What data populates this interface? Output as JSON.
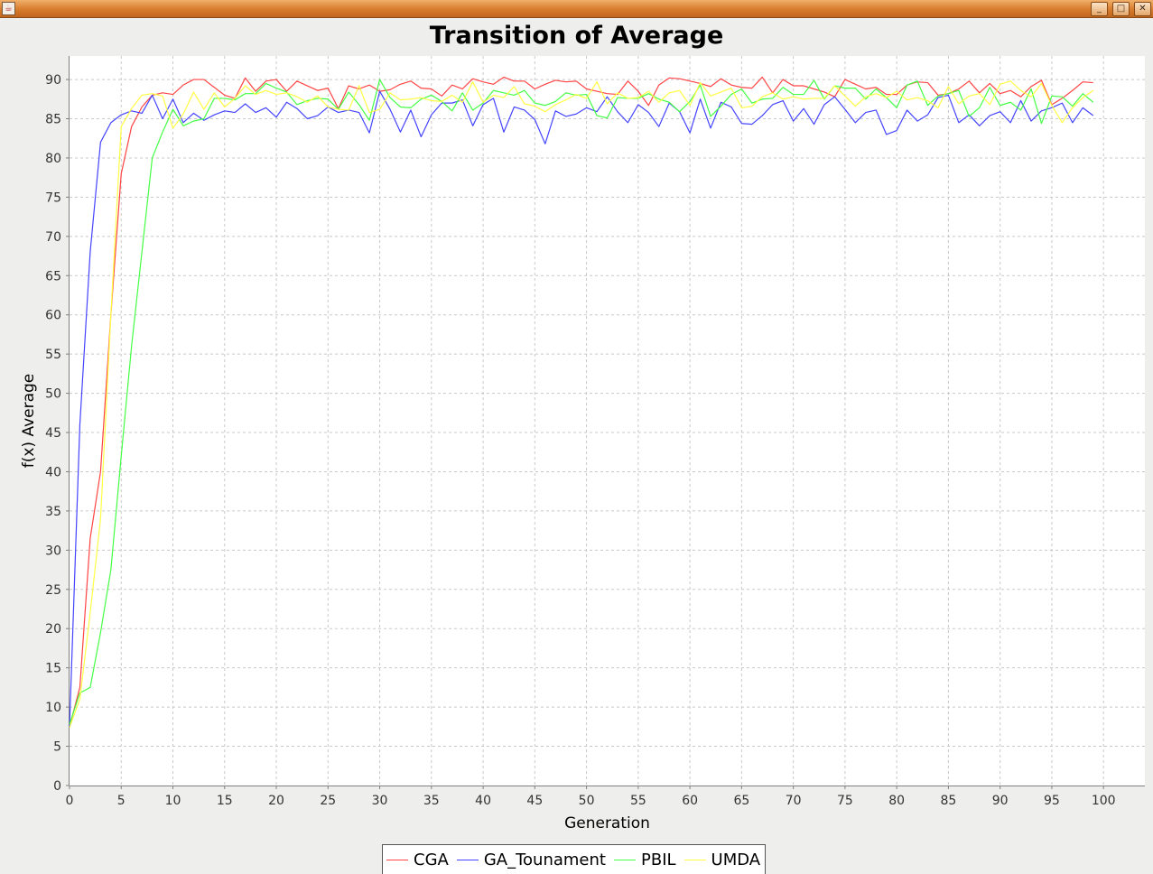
{
  "window": {
    "title": ""
  },
  "colors": {
    "plot_background": "#ffffff",
    "grid": "#c8c8c8",
    "axis": "#808080"
  },
  "legend_items": [
    {
      "label": "CGA",
      "color": "#ff4444"
    },
    {
      "label": "GA_Tounament",
      "color": "#4444ff"
    },
    {
      "label": "PBIL",
      "color": "#44ff44"
    },
    {
      "label": "UMDA",
      "color": "#ffff44"
    }
  ],
  "chart_data": {
    "type": "line",
    "title": "Transition of Average",
    "xlabel": "Generation",
    "ylabel": "f(x) Average",
    "xlim": [
      0,
      104
    ],
    "ylim": [
      0,
      93
    ],
    "x_ticks": [
      0,
      5,
      10,
      15,
      20,
      25,
      30,
      35,
      40,
      45,
      50,
      55,
      60,
      65,
      70,
      75,
      80,
      85,
      90,
      95,
      100
    ],
    "y_ticks": [
      0,
      5,
      10,
      15,
      20,
      25,
      30,
      35,
      40,
      45,
      50,
      55,
      60,
      65,
      70,
      75,
      80,
      85,
      90
    ],
    "grid": true,
    "legend_position": "bottom",
    "series": [
      {
        "name": "CGA",
        "color": "#ff4444",
        "values": [
          7.5,
          12.5,
          31.5,
          40,
          60,
          78,
          84,
          86.5,
          88,
          88.3,
          88.1,
          89.3,
          90,
          90,
          89,
          88,
          87.6,
          90.2,
          88.5,
          89.8,
          90,
          88.5,
          89.8,
          89.2,
          88.6,
          88.9,
          86.3,
          89.2,
          88.8,
          89.3,
          88.5,
          88.7,
          89.4,
          89.8,
          88.9,
          88.8,
          87.9,
          89.3,
          88.8,
          90.1,
          89.7,
          89.4,
          90.3,
          89.8,
          89.8,
          88.8,
          89.4,
          89.9,
          89.7,
          89.8,
          88.8,
          88.5,
          88.2,
          88.1,
          89.8,
          88.5,
          86.7,
          89.3,
          90.2,
          90.1,
          89.8,
          89.5,
          89.1,
          90.1,
          89.3,
          89,
          88.9,
          90.3,
          88.3,
          90,
          89.2,
          89.2,
          88.8,
          88.4,
          87.8,
          90,
          89.4,
          88.8,
          89,
          88.1,
          88.1,
          89.3,
          89.7,
          89.6,
          88,
          88.2,
          88.8,
          89.8,
          88.3,
          89.5,
          88.2,
          88.6,
          87.8,
          89.1,
          89.9,
          86.8,
          87.6,
          88.6,
          89.7,
          89.6
        ]
      },
      {
        "name": "GA_Tounament",
        "color": "#4444ff",
        "values": [
          7.5,
          46,
          68,
          82,
          84.5,
          85.5,
          86,
          85.7,
          88,
          85,
          87.5,
          84.5,
          85.7,
          84.8,
          85.5,
          86,
          85.8,
          86.9,
          85.8,
          86.4,
          85.2,
          87.1,
          86.3,
          85,
          85.4,
          86.5,
          85.8,
          86.1,
          85.8,
          83.2,
          88.5,
          86.2,
          83.3,
          86.1,
          82.7,
          85.5,
          87,
          87,
          87.4,
          84.1,
          86.8,
          87.6,
          83.3,
          86.5,
          86.1,
          84.9,
          81.8,
          86,
          85.3,
          85.6,
          86.4,
          85.9,
          87.8,
          85.9,
          84.5,
          86.8,
          85.8,
          84,
          87,
          85.9,
          83.2,
          87.5,
          83.8,
          87.1,
          86.5,
          84.4,
          84.3,
          85.4,
          86.8,
          87.3,
          84.7,
          86.3,
          84.3,
          86.8,
          87.8,
          86.2,
          84.5,
          85.8,
          86.1,
          83,
          83.5,
          86.1,
          84.7,
          85.5,
          87.7,
          88,
          84.5,
          85.5,
          84.1,
          85.4,
          85.9,
          84.5,
          87.3,
          84.7,
          86,
          86.4,
          87,
          84.5,
          86.4,
          85.4
        ]
      },
      {
        "name": "PBIL",
        "color": "#44ff44",
        "values": [
          7.8,
          11.8,
          12.5,
          19.5,
          27.5,
          42,
          56,
          68,
          80,
          83.3,
          86.2,
          84.1,
          84.7,
          85,
          87.6,
          87.6,
          87.4,
          88.2,
          88.2,
          89.5,
          88.9,
          88.4,
          86.8,
          87.3,
          87.6,
          87.5,
          86.2,
          88.4,
          86.8,
          84.8,
          90,
          87.7,
          86.5,
          86.4,
          87.5,
          88,
          87.2,
          86,
          88.3,
          86.1,
          87,
          88.6,
          88.3,
          88,
          88.6,
          87,
          86.7,
          87.2,
          88.3,
          88,
          88.1,
          85.4,
          85.1,
          87.7,
          87.6,
          87.6,
          88.2,
          87.5,
          87.1,
          85.9,
          87.2,
          89.3,
          85.3,
          86.6,
          88.1,
          88.8,
          87,
          87.5,
          87.6,
          89,
          88.1,
          88.1,
          89.9,
          87.5,
          89.2,
          88.9,
          88.9,
          87.5,
          88.8,
          87.7,
          86.4,
          89.3,
          89.8,
          86.7,
          87.9,
          88.2,
          88.6,
          85.3,
          86.4,
          89,
          86.7,
          87.1,
          86.1,
          88.8,
          84.4,
          87.9,
          87.8,
          86.6,
          88.2,
          87.1
        ]
      },
      {
        "name": "UMDA",
        "color": "#ffff44",
        "values": [
          7.4,
          11,
          22,
          34,
          60,
          84,
          86.3,
          88,
          88.2,
          87.9,
          83.8,
          85.6,
          88.4,
          86.2,
          88.3,
          86.5,
          87.6,
          89.2,
          88.1,
          88.6,
          88.1,
          88.3,
          87.8,
          87.1,
          87.9,
          86.5,
          86.2,
          86.1,
          89.2,
          85.8,
          86.2,
          88.3,
          87.4,
          87.5,
          87.7,
          87.3,
          87.2,
          88,
          87.1,
          89.7,
          87.1,
          88,
          87.7,
          89.1,
          86.9,
          86.6,
          85.9,
          86.8,
          87.4,
          88.1,
          87.6,
          89.7,
          86.9,
          88.3,
          87.6,
          87.7,
          88.5,
          87.1,
          88.3,
          88.6,
          86.7,
          89.6,
          87.9,
          88.4,
          88.9,
          86.4,
          86.6,
          87.8,
          88.3,
          87.5,
          87.8,
          87.5,
          87.6,
          87.6,
          89.2,
          87.9,
          86.6,
          87.8,
          88.2,
          87.7,
          88.5,
          87.4,
          87.7,
          87.3,
          86.4,
          89.1,
          86.9,
          87.9,
          88.2,
          86.8,
          89.4,
          89.8,
          88.6,
          87.8,
          89.5,
          86.7,
          84.5,
          86.4,
          87.7,
          88.6
        ]
      }
    ]
  }
}
